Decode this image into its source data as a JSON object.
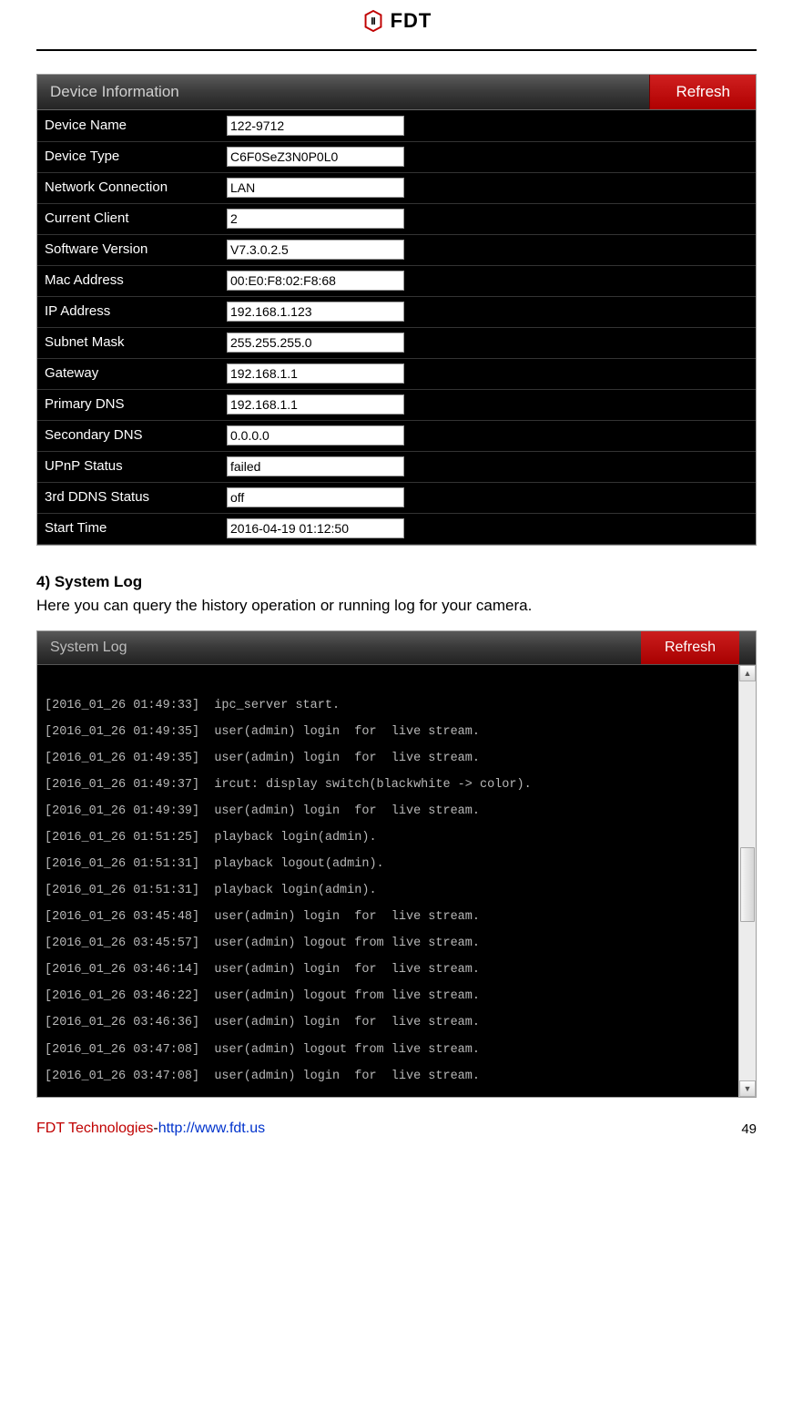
{
  "header": {
    "brand_text": "FDT"
  },
  "device_info": {
    "panel_title": "Device Information",
    "refresh_label": "Refresh",
    "rows": [
      {
        "label": "Device Name",
        "value": "122-9712"
      },
      {
        "label": "Device Type",
        "value": "C6F0SeZ3N0P0L0"
      },
      {
        "label": "Network Connection",
        "value": "LAN"
      },
      {
        "label": "Current Client",
        "value": "2"
      },
      {
        "label": "Software Version",
        "value": "V7.3.0.2.5"
      },
      {
        "label": "Mac Address",
        "value": "00:E0:F8:02:F8:68"
      },
      {
        "label": "IP Address",
        "value": "192.168.1.123"
      },
      {
        "label": "Subnet Mask",
        "value": "255.255.255.0"
      },
      {
        "label": "Gateway",
        "value": "192.168.1.1"
      },
      {
        "label": "Primary DNS",
        "value": "192.168.1.1"
      },
      {
        "label": "Secondary DNS",
        "value": "0.0.0.0"
      },
      {
        "label": "UPnP Status",
        "value": "failed"
      },
      {
        "label": "3rd DDNS Status",
        "value": "off"
      },
      {
        "label": "Start Time",
        "value": "2016-04-19 01:12:50"
      }
    ]
  },
  "section": {
    "heading": "4) System Log",
    "description": "Here you can query the history operation or running log for your camera."
  },
  "system_log": {
    "panel_title": "System Log",
    "refresh_label": "Refresh",
    "entries": [
      "[2016_01_26 01:49:33]  ipc_server start.",
      "[2016_01_26 01:49:35]  user(admin) login  for  live stream.",
      "[2016_01_26 01:49:35]  user(admin) login  for  live stream.",
      "[2016_01_26 01:49:37]  ircut: display switch(blackwhite -> color).",
      "[2016_01_26 01:49:39]  user(admin) login  for  live stream.",
      "[2016_01_26 01:51:25]  playback login(admin).",
      "[2016_01_26 01:51:31]  playback logout(admin).",
      "[2016_01_26 01:51:31]  playback login(admin).",
      "[2016_01_26 03:45:48]  user(admin) login  for  live stream.",
      "[2016_01_26 03:45:57]  user(admin) logout from live stream.",
      "[2016_01_26 03:46:14]  user(admin) login  for  live stream.",
      "[2016_01_26 03:46:22]  user(admin) logout from live stream.",
      "[2016_01_26 03:46:36]  user(admin) login  for  live stream.",
      "[2016_01_26 03:47:08]  user(admin) logout from live stream.",
      "[2016_01_26 03:47:08]  user(admin) login  for  live stream."
    ]
  },
  "footer": {
    "company": "FDT Technologies",
    "dash": "-",
    "url": "http://www.fdt.us",
    "page_number": "49"
  },
  "colors": {
    "brand_red": "#c00000",
    "refresh_red": "#b00000",
    "panel_dark": "#000000",
    "link_blue": "#0033cc"
  }
}
